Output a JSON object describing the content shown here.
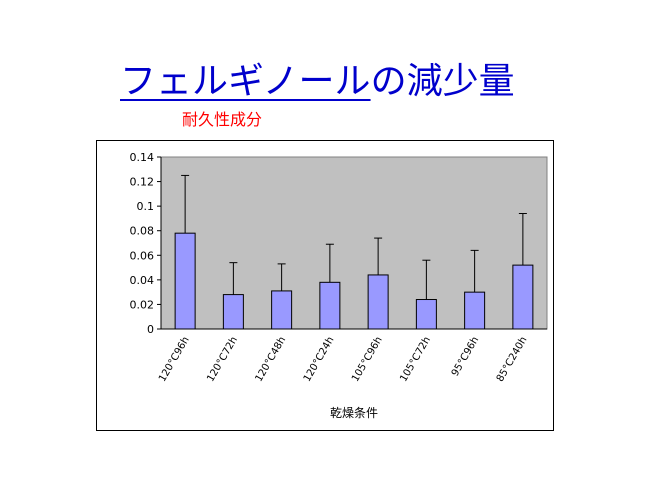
{
  "slide": {
    "title_main": "フェルギノール",
    "title_rest": "の減少量",
    "subtitle": "耐久性成分"
  },
  "colors": {
    "title": "#0000cc",
    "subtitle": "#ff0000",
    "plot_background": "#c0c0c0",
    "bar_fill": "#9999ff"
  },
  "chart_data": {
    "type": "bar",
    "categories": [
      "120°C96h",
      "120°C72h",
      "120°C48h",
      "120°C24h",
      "105°C96h",
      "105°C72h",
      "95°C96h",
      "85°C240h"
    ],
    "values": [
      0.078,
      0.028,
      0.031,
      0.038,
      0.044,
      0.024,
      0.03,
      0.052
    ],
    "error_upper": [
      0.125,
      0.054,
      0.053,
      0.069,
      0.074,
      0.056,
      0.064,
      0.094
    ],
    "xlabel": "乾燥条件",
    "ylabel": "",
    "ylim": [
      0,
      0.14
    ],
    "yticks": [
      "0",
      "0.02",
      "0.04",
      "0.06",
      "0.08",
      "0.1",
      "0.12",
      "0.14"
    ],
    "grid": false,
    "legend": false
  }
}
